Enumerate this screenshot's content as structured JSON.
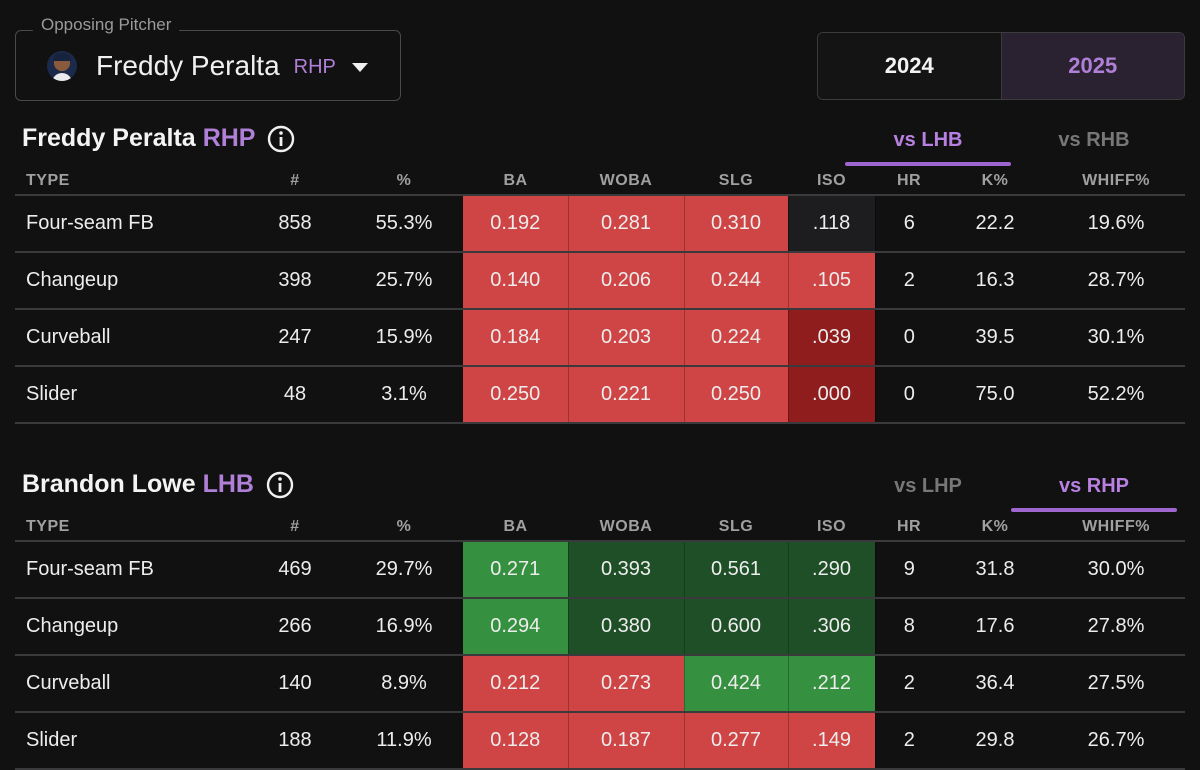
{
  "selector": {
    "legend": "Opposing Pitcher",
    "pitcher_name": "Freddy Peralta",
    "pitcher_hand": "RHP"
  },
  "years": {
    "inactive": "2024",
    "active": "2025"
  },
  "columns": [
    "TYPE",
    "#",
    "%",
    "BA",
    "WOBA",
    "SLG",
    "ISO",
    "HR",
    "K%",
    "WHIFF%"
  ],
  "colors": {
    "accent": "#b07fd8",
    "red": "#cf4545",
    "dark_red": "#8f1d1e",
    "mid_red": "#a92c2d",
    "green": "#35903f",
    "dark_green": "#1f4f27",
    "neutral": "#1d1d1f"
  },
  "pitcher_section": {
    "name": "Freddy Peralta",
    "hand": "RHP",
    "tab_left": "vs LHB",
    "tab_right": "vs RHB",
    "active_tab": "vs LHB",
    "rows": [
      {
        "type": "Four-seam FB",
        "count": "858",
        "pct": "55.3%",
        "ba": "0.192",
        "woba": "0.281",
        "slg": "0.310",
        "iso": ".118",
        "hr": "6",
        "k": "22.2",
        "whiff": "19.6%",
        "heat": {
          "ba": "#cf4545",
          "woba": "#cf4545",
          "slg": "#cf4545",
          "iso": "#1d1d1f"
        }
      },
      {
        "type": "Changeup",
        "count": "398",
        "pct": "25.7%",
        "ba": "0.140",
        "woba": "0.206",
        "slg": "0.244",
        "iso": ".105",
        "hr": "2",
        "k": "16.3",
        "whiff": "28.7%",
        "heat": {
          "ba": "#cf4545",
          "woba": "#cf4545",
          "slg": "#cf4545",
          "iso": "#cf4545"
        }
      },
      {
        "type": "Curveball",
        "count": "247",
        "pct": "15.9%",
        "ba": "0.184",
        "woba": "0.203",
        "slg": "0.224",
        "iso": ".039",
        "hr": "0",
        "k": "39.5",
        "whiff": "30.1%",
        "heat": {
          "ba": "#cf4545",
          "woba": "#cf4545",
          "slg": "#cf4545",
          "iso": "#8f1d1e"
        }
      },
      {
        "type": "Slider",
        "count": "48",
        "pct": "3.1%",
        "ba": "0.250",
        "woba": "0.221",
        "slg": "0.250",
        "iso": ".000",
        "hr": "0",
        "k": "75.0",
        "whiff": "52.2%",
        "heat": {
          "ba": "#cf4545",
          "woba": "#cf4545",
          "slg": "#cf4545",
          "iso": "#8f1d1e"
        }
      }
    ]
  },
  "batter_section": {
    "name": "Brandon Lowe",
    "hand": "LHB",
    "tab_left": "vs LHP",
    "tab_right": "vs RHP",
    "active_tab": "vs RHP",
    "rows": [
      {
        "type": "Four-seam FB",
        "count": "469",
        "pct": "29.7%",
        "ba": "0.271",
        "woba": "0.393",
        "slg": "0.561",
        "iso": ".290",
        "hr": "9",
        "k": "31.8",
        "whiff": "30.0%",
        "heat": {
          "ba": "#35903f",
          "woba": "#1f4f27",
          "slg": "#1f4f27",
          "iso": "#1f4f27"
        }
      },
      {
        "type": "Changeup",
        "count": "266",
        "pct": "16.9%",
        "ba": "0.294",
        "woba": "0.380",
        "slg": "0.600",
        "iso": ".306",
        "hr": "8",
        "k": "17.6",
        "whiff": "27.8%",
        "heat": {
          "ba": "#35903f",
          "woba": "#1f4f27",
          "slg": "#1f4f27",
          "iso": "#1f4f27"
        }
      },
      {
        "type": "Curveball",
        "count": "140",
        "pct": "8.9%",
        "ba": "0.212",
        "woba": "0.273",
        "slg": "0.424",
        "iso": ".212",
        "hr": "2",
        "k": "36.4",
        "whiff": "27.5%",
        "heat": {
          "ba": "#cf4545",
          "woba": "#cf4545",
          "slg": "#35903f",
          "iso": "#35903f"
        }
      },
      {
        "type": "Slider",
        "count": "188",
        "pct": "11.9%",
        "ba": "0.128",
        "woba": "0.187",
        "slg": "0.277",
        "iso": ".149",
        "hr": "2",
        "k": "29.8",
        "whiff": "26.7%",
        "heat": {
          "ba": "#cf4545",
          "woba": "#cf4545",
          "slg": "#cf4545",
          "iso": "#cf4545"
        }
      }
    ]
  }
}
